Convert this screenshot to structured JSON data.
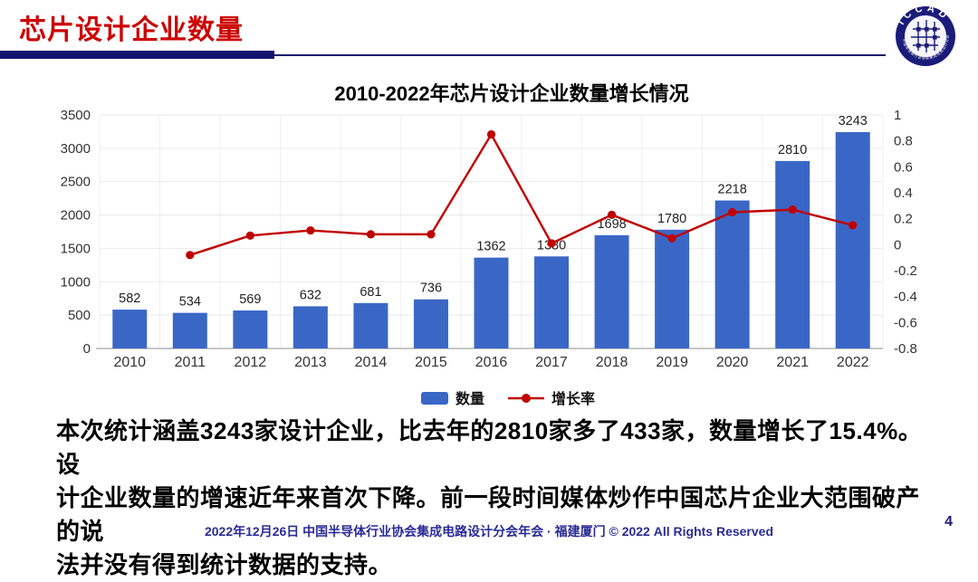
{
  "header": {
    "title": "芯片设计企业数量"
  },
  "logo": {
    "text": "ICCAD",
    "ring_text": "中国半导体行业协会集成电路设计分会"
  },
  "chart_data": {
    "type": "bar",
    "title": "2010-2022年芯片设计企业数量增长情况",
    "categories": [
      "2010",
      "2011",
      "2012",
      "2013",
      "2014",
      "2015",
      "2016",
      "2017",
      "2018",
      "2019",
      "2020",
      "2021",
      "2022"
    ],
    "series": [
      {
        "name": "数量",
        "type": "bar",
        "color": "#3a67c6",
        "values": [
          582,
          534,
          569,
          632,
          681,
          736,
          1362,
          1380,
          1698,
          1780,
          2218,
          2810,
          3243
        ],
        "labels": [
          "582",
          "534",
          "569",
          "632",
          "681",
          "736",
          "1362",
          "1380",
          "1698",
          "1780",
          "2218",
          "2810",
          "3243"
        ]
      },
      {
        "name": "增长率",
        "type": "line",
        "color": "#c00000",
        "values": [
          null,
          -0.08,
          0.07,
          0.11,
          0.08,
          0.08,
          0.85,
          0.01,
          0.23,
          0.05,
          0.25,
          0.27,
          0.15
        ]
      }
    ],
    "left_axis": {
      "min": 0,
      "max": 3500,
      "step": 500,
      "ticks": [
        "0",
        "500",
        "1000",
        "1500",
        "2000",
        "2500",
        "3000",
        "3500"
      ]
    },
    "right_axis": {
      "min": -0.8,
      "max": 1,
      "step": 0.2,
      "ticks": [
        "1",
        "0.8",
        "0.6",
        "0.4",
        "0.2",
        "0",
        "-0.2",
        "-0.4",
        "-0.6",
        "-0.8"
      ]
    },
    "legend": [
      "数量",
      "增长率"
    ],
    "legend_position": "bottom",
    "grid": true
  },
  "body": {
    "lines": [
      "本次统计涵盖3243家设计企业，比去年的2810家多了433家，数量增长了15.4%。设",
      "计企业数量的增速近年来首次下降。前一段时间媒体炒作中国芯片企业大范围破产的说",
      "法并没有得到统计数据的支持。"
    ]
  },
  "footer": {
    "text": "2022年12月26日 中国半导体行业协会集成电路设计分会年会 · 福建厦门 © 2022 All Rights Reserved",
    "page": "4"
  },
  "colors": {
    "title_red": "#cc0000",
    "navy": "#14146e",
    "bar_blue": "#3a67c6",
    "line_red": "#c00000",
    "footer_navy": "#2b2b96",
    "grid": "#e9e9e9"
  }
}
